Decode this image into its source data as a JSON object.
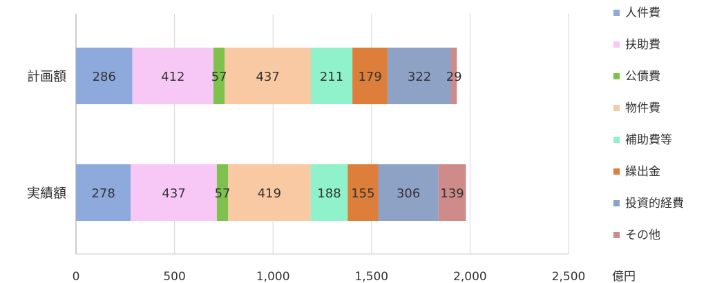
{
  "chart_data": {
    "type": "bar",
    "orientation": "horizontal",
    "stacked": true,
    "categories": [
      "計画額",
      "実績額"
    ],
    "series": [
      {
        "name": "人件費",
        "color": "#8eaadc",
        "values": [
          286,
          278
        ]
      },
      {
        "name": "扶助費",
        "color": "#f7c8f5",
        "values": [
          412,
          437
        ]
      },
      {
        "name": "公債費",
        "color": "#7ec24d",
        "values": [
          57,
          57
        ]
      },
      {
        "name": "物件費",
        "color": "#f8c9a2",
        "values": [
          437,
          419
        ]
      },
      {
        "name": "補助費等",
        "color": "#8ff2cb",
        "values": [
          211,
          188
        ]
      },
      {
        "name": "繰出金",
        "color": "#dd7f3a",
        "values": [
          179,
          155
        ]
      },
      {
        "name": "投資的経費",
        "color": "#8ea2c6",
        "values": [
          322,
          306
        ]
      },
      {
        "name": "その他",
        "color": "#cf8a8a",
        "values": [
          29,
          139
        ]
      }
    ],
    "xlim": [
      0,
      2500
    ],
    "xticks": [
      0,
      500,
      1000,
      1500,
      2000,
      2500
    ],
    "xtick_labels": [
      "0",
      "500",
      "1,000",
      "1,500",
      "2,000",
      "2,500"
    ],
    "xunit": "億円",
    "grid": true,
    "legend": "right"
  }
}
